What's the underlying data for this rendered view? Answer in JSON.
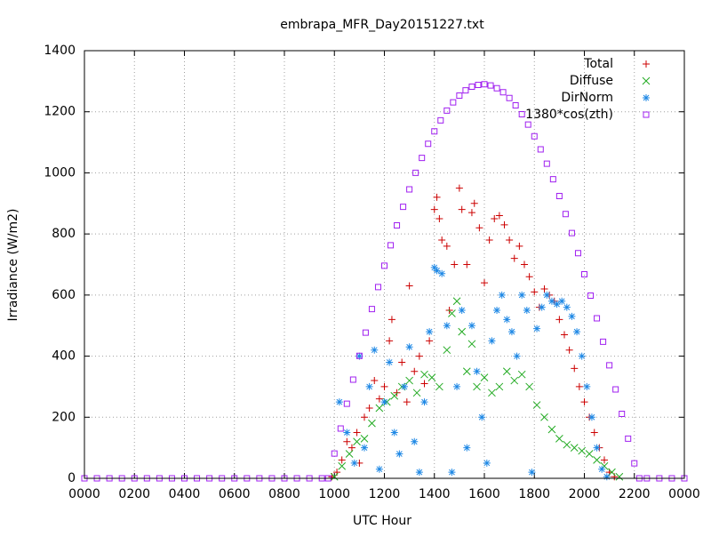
{
  "chart_data": {
    "type": "scatter",
    "title": "embrapa_MFR_Day20151227.txt",
    "xlabel": "UTC Hour",
    "ylabel": "Irradiance (W/m2)",
    "xlim": [
      0,
      24
    ],
    "ylim": [
      0,
      1400
    ],
    "xticks": [
      {
        "value": 0,
        "label": "0000"
      },
      {
        "value": 2,
        "label": "0200"
      },
      {
        "value": 4,
        "label": "0400"
      },
      {
        "value": 6,
        "label": "0600"
      },
      {
        "value": 8,
        "label": "0800"
      },
      {
        "value": 10,
        "label": "1000"
      },
      {
        "value": 12,
        "label": "1200"
      },
      {
        "value": 14,
        "label": "1400"
      },
      {
        "value": 16,
        "label": "1600"
      },
      {
        "value": 18,
        "label": "1800"
      },
      {
        "value": 20,
        "label": "2000"
      },
      {
        "value": 22,
        "label": "2200"
      },
      {
        "value": 24,
        "label": "0000"
      }
    ],
    "yticks": [
      0,
      200,
      400,
      600,
      800,
      1000,
      1200,
      1400
    ],
    "grid": true,
    "legend": "top-right",
    "series": [
      {
        "name": "Total",
        "color": "#cc0000",
        "marker": "plus",
        "x": [
          9.9,
          10.1,
          10.3,
          10.5,
          10.7,
          10.9,
          11,
          11.2,
          11.4,
          11.6,
          11.8,
          12,
          12.2,
          12.3,
          12.5,
          12.7,
          12.9,
          13,
          13.2,
          13.4,
          13.6,
          13.8,
          14,
          14.1,
          14.2,
          14.3,
          14.5,
          14.6,
          14.8,
          15,
          15.1,
          15.3,
          15.5,
          15.6,
          15.8,
          16,
          16.2,
          16.4,
          16.6,
          16.8,
          17,
          17.2,
          17.4,
          17.6,
          17.8,
          18,
          18.2,
          18.4,
          18.6,
          18.8,
          19,
          19.2,
          19.4,
          19.6,
          19.8,
          20,
          20.2,
          20.4,
          20.6,
          20.8,
          21,
          21.2
        ],
        "values": [
          5,
          20,
          60,
          120,
          100,
          150,
          50,
          200,
          230,
          320,
          260,
          300,
          450,
          520,
          280,
          380,
          250,
          630,
          350,
          400,
          310,
          450,
          880,
          920,
          850,
          780,
          760,
          550,
          700,
          950,
          880,
          700,
          870,
          900,
          820,
          640,
          780,
          850,
          860,
          830,
          780,
          720,
          760,
          700,
          660,
          610,
          560,
          620,
          600,
          580,
          520,
          470,
          420,
          360,
          300,
          250,
          200,
          150,
          100,
          60,
          20,
          5
        ]
      },
      {
        "name": "Diffuse",
        "color": "#22aa22",
        "marker": "cross",
        "x": [
          10,
          10.3,
          10.6,
          10.9,
          11.2,
          11.5,
          11.8,
          12.1,
          12.4,
          12.7,
          13,
          13.3,
          13.6,
          13.9,
          14.2,
          14.5,
          14.7,
          14.9,
          15.1,
          15.3,
          15.5,
          15.7,
          16,
          16.3,
          16.6,
          16.9,
          17.2,
          17.5,
          17.8,
          18.1,
          18.4,
          18.7,
          19,
          19.3,
          19.6,
          19.9,
          20.2,
          20.5,
          20.8,
          21.1,
          21.4
        ],
        "values": [
          5,
          40,
          80,
          120,
          130,
          180,
          230,
          250,
          270,
          300,
          320,
          280,
          340,
          330,
          300,
          420,
          540,
          580,
          480,
          350,
          440,
          300,
          330,
          280,
          300,
          350,
          320,
          340,
          300,
          240,
          200,
          160,
          130,
          110,
          100,
          90,
          80,
          60,
          40,
          20,
          5
        ]
      },
      {
        "name": "DirNorm",
        "color": "#1e88e5",
        "marker": "star",
        "x": [
          10.2,
          10.5,
          10.8,
          11,
          11.2,
          11.4,
          11.6,
          11.8,
          12,
          12.2,
          12.4,
          12.6,
          12.8,
          13,
          13.2,
          13.4,
          13.6,
          13.8,
          14,
          14.1,
          14.3,
          14.5,
          14.7,
          14.9,
          15.1,
          15.3,
          15.5,
          15.7,
          15.9,
          16.1,
          16.3,
          16.5,
          16.7,
          16.9,
          17.1,
          17.3,
          17.5,
          17.7,
          17.9,
          18.1,
          18.3,
          18.5,
          18.7,
          18.9,
          19.1,
          19.3,
          19.5,
          19.7,
          19.9,
          20.1,
          20.3,
          20.5,
          20.7,
          20.9
        ],
        "values": [
          250,
          150,
          50,
          400,
          100,
          300,
          420,
          30,
          250,
          380,
          150,
          80,
          300,
          430,
          120,
          20,
          250,
          480,
          690,
          680,
          670,
          500,
          20,
          300,
          550,
          100,
          500,
          350,
          200,
          50,
          450,
          550,
          600,
          520,
          480,
          400,
          600,
          550,
          20,
          490,
          560,
          600,
          580,
          570,
          580,
          560,
          530,
          480,
          400,
          300,
          200,
          100,
          30,
          5
        ]
      },
      {
        "name": "1380*cos(zth)",
        "color": "#a020f0",
        "marker": "square",
        "x": [
          0,
          0.5,
          1,
          1.5,
          2,
          2.5,
          3,
          3.5,
          4,
          4.5,
          5,
          5.5,
          6,
          6.5,
          7,
          7.5,
          8,
          8.5,
          9,
          9.5,
          9.75,
          10,
          10.25,
          10.5,
          10.75,
          11,
          11.25,
          11.5,
          11.75,
          12,
          12.25,
          12.5,
          12.75,
          13,
          13.25,
          13.5,
          13.75,
          14,
          14.25,
          14.5,
          14.75,
          15,
          15.25,
          15.5,
          15.75,
          16,
          16.25,
          16.5,
          16.75,
          17,
          17.25,
          17.5,
          17.75,
          18,
          18.25,
          18.5,
          18.75,
          19,
          19.25,
          19.5,
          19.75,
          20,
          20.25,
          20.5,
          20.75,
          21,
          21.25,
          21.5,
          21.75,
          22,
          22.2,
          22.5,
          23,
          23.5,
          24
        ],
        "values": [
          0,
          0,
          0,
          0,
          0,
          0,
          0,
          0,
          0,
          0,
          0,
          0,
          0,
          0,
          0,
          0,
          0,
          0,
          0,
          0,
          0,
          81,
          163,
          244,
          323,
          401,
          477,
          554,
          626,
          696,
          763,
          828,
          889,
          946,
          1000,
          1049,
          1095,
          1136,
          1172,
          1204,
          1231,
          1253,
          1270,
          1282,
          1288,
          1290,
          1286,
          1277,
          1264,
          1245,
          1221,
          1192,
          1158,
          1120,
          1077,
          1030,
          979,
          924,
          865,
          803,
          737,
          668,
          598,
          524,
          447,
          370,
          291,
          211,
          130,
          49,
          0,
          0,
          0,
          0,
          0
        ]
      }
    ]
  }
}
